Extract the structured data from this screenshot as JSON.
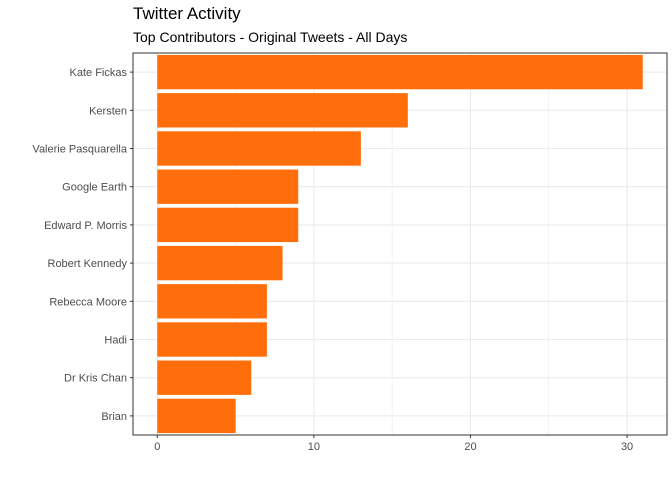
{
  "chart_data": {
    "type": "bar",
    "orientation": "horizontal",
    "title": "Twitter Activity",
    "subtitle": "Top Contributors - Original Tweets - All Days",
    "xlabel": "",
    "ylabel": "",
    "categories": [
      "Kate Fickas",
      "Kersten",
      "Valerie Pasquarella",
      "Google Earth",
      "Edward P. Morris",
      "Robert Kennedy",
      "Rebecca Moore",
      "Hadi",
      "Dr Kris Chan",
      "Brian"
    ],
    "values": [
      31,
      16,
      13,
      9,
      9,
      8,
      7,
      7,
      6,
      5
    ],
    "xlim": [
      -1.55,
      32.55
    ],
    "xticks": [
      0,
      10,
      20,
      30
    ],
    "grid": true,
    "bar_color": "#FF6E0B",
    "grid_color": "#EBEBEB",
    "border_color": "#333333"
  }
}
